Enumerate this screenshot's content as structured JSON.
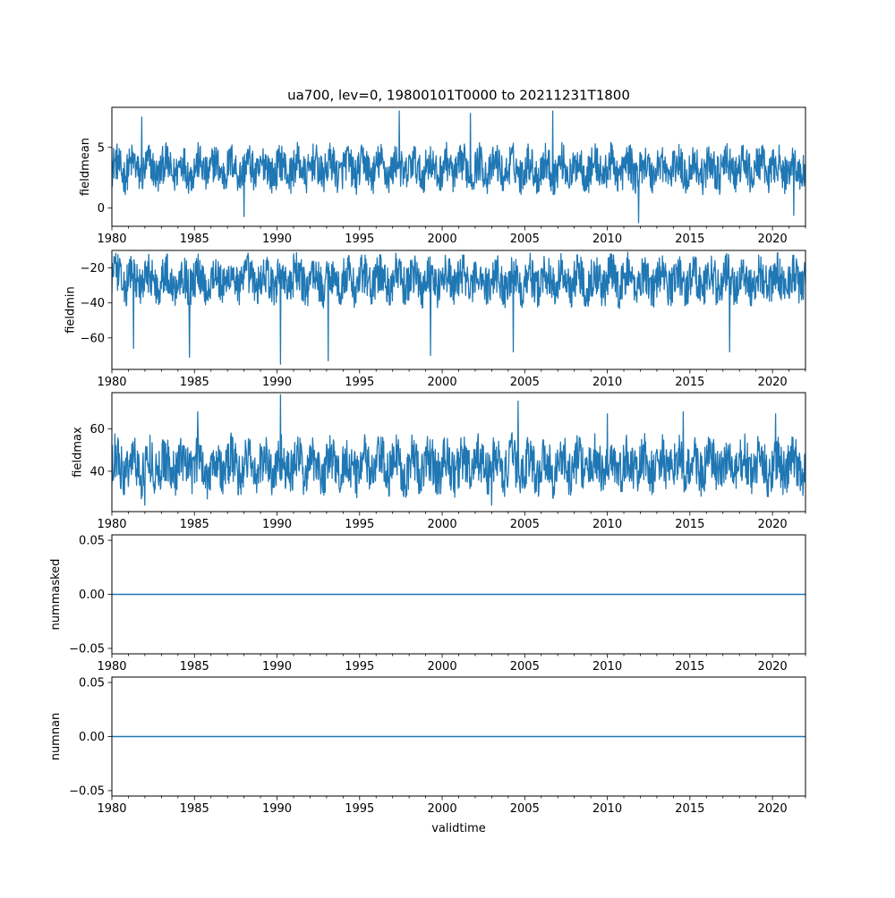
{
  "figure": {
    "title": "ua700, lev=0, 19800101T0000 to 20211231T1800",
    "xlabel": "validtime",
    "line_color": "#1f77b4"
  },
  "chart_data": [
    {
      "type": "line",
      "ylabel": "fieldmean",
      "xlim": [
        1980.0,
        2022.0
      ],
      "ylim": [
        -1.5,
        8.3
      ],
      "x_ticks": [
        "1980",
        "1985",
        "1990",
        "1995",
        "2000",
        "2005",
        "2010",
        "2015",
        "2020"
      ],
      "y_ticks": [
        {
          "value": 0,
          "label": "0"
        },
        {
          "value": 5,
          "label": "5"
        }
      ],
      "series": [
        {
          "typical_range": [
            1.5,
            5.0
          ],
          "extremes": [
            {
              "x": 1981.8,
              "y": 7.5
            },
            {
              "x": 1988.0,
              "y": -0.7
            },
            {
              "x": 1997.4,
              "y": 8.0
            },
            {
              "x": 2001.7,
              "y": 7.8
            },
            {
              "x": 2006.7,
              "y": 8.0
            },
            {
              "x": 2011.9,
              "y": -1.2
            },
            {
              "x": 2021.3,
              "y": -0.6
            }
          ]
        }
      ]
    },
    {
      "type": "line",
      "ylabel": "fieldmin",
      "xlim": [
        1980.0,
        2022.0
      ],
      "ylim": [
        -78.0,
        -10.0
      ],
      "x_ticks": [
        "1980",
        "1985",
        "1990",
        "1995",
        "2000",
        "2005",
        "2010",
        "2015",
        "2020"
      ],
      "y_ticks": [
        {
          "value": -20,
          "label": "−20"
        },
        {
          "value": -40,
          "label": "−40"
        },
        {
          "value": -60,
          "label": "−60"
        }
      ],
      "series": [
        {
          "typical_range": [
            -40,
            -14
          ],
          "extremes": [
            {
              "x": 1984.7,
              "y": -71
            },
            {
              "x": 1990.2,
              "y": -75
            },
            {
              "x": 1993.1,
              "y": -73
            },
            {
              "x": 1999.3,
              "y": -70
            },
            {
              "x": 2004.3,
              "y": -68
            },
            {
              "x": 2017.4,
              "y": -68
            },
            {
              "x": 1981.3,
              "y": -66
            },
            {
              "x": 1991.0,
              "y": -12
            }
          ]
        }
      ]
    },
    {
      "type": "line",
      "ylabel": "fieldmax",
      "xlim": [
        1980.0,
        2022.0
      ],
      "ylim": [
        21.0,
        77.0
      ],
      "x_ticks": [
        "1980",
        "1985",
        "1990",
        "1995",
        "2000",
        "2005",
        "2010",
        "2015",
        "2020"
      ],
      "y_ticks": [
        {
          "value": 40,
          "label": "40"
        },
        {
          "value": 60,
          "label": "60"
        }
      ],
      "series": [
        {
          "typical_range": [
            30,
            55
          ],
          "extremes": [
            {
              "x": 1990.2,
              "y": 76
            },
            {
              "x": 2004.6,
              "y": 73
            },
            {
              "x": 1985.2,
              "y": 68
            },
            {
              "x": 2010.0,
              "y": 67
            },
            {
              "x": 2014.6,
              "y": 68
            },
            {
              "x": 2020.2,
              "y": 67
            },
            {
              "x": 1982.0,
              "y": 24
            },
            {
              "x": 2003.0,
              "y": 24
            }
          ]
        }
      ]
    },
    {
      "type": "line",
      "ylabel": "nummasked",
      "xlim": [
        1980.0,
        2022.0
      ],
      "ylim": [
        -0.055,
        0.055
      ],
      "x_ticks": [
        "1980",
        "1985",
        "1990",
        "1995",
        "2000",
        "2005",
        "2010",
        "2015",
        "2020"
      ],
      "y_ticks": [
        {
          "value": 0.05,
          "label": "0.05"
        },
        {
          "value": 0.0,
          "label": "0.00"
        },
        {
          "value": -0.05,
          "label": "−0.05"
        }
      ],
      "series": [
        {
          "constant": 0.0
        }
      ]
    },
    {
      "type": "line",
      "ylabel": "numnan",
      "xlim": [
        1980.0,
        2022.0
      ],
      "ylim": [
        -0.055,
        0.055
      ],
      "x_ticks": [
        "1980",
        "1985",
        "1990",
        "1995",
        "2000",
        "2005",
        "2010",
        "2015",
        "2020"
      ],
      "y_ticks": [
        {
          "value": 0.05,
          "label": "0.05"
        },
        {
          "value": 0.0,
          "label": "0.00"
        },
        {
          "value": -0.05,
          "label": "−0.05"
        }
      ],
      "series": [
        {
          "constant": 0.0
        }
      ]
    }
  ]
}
